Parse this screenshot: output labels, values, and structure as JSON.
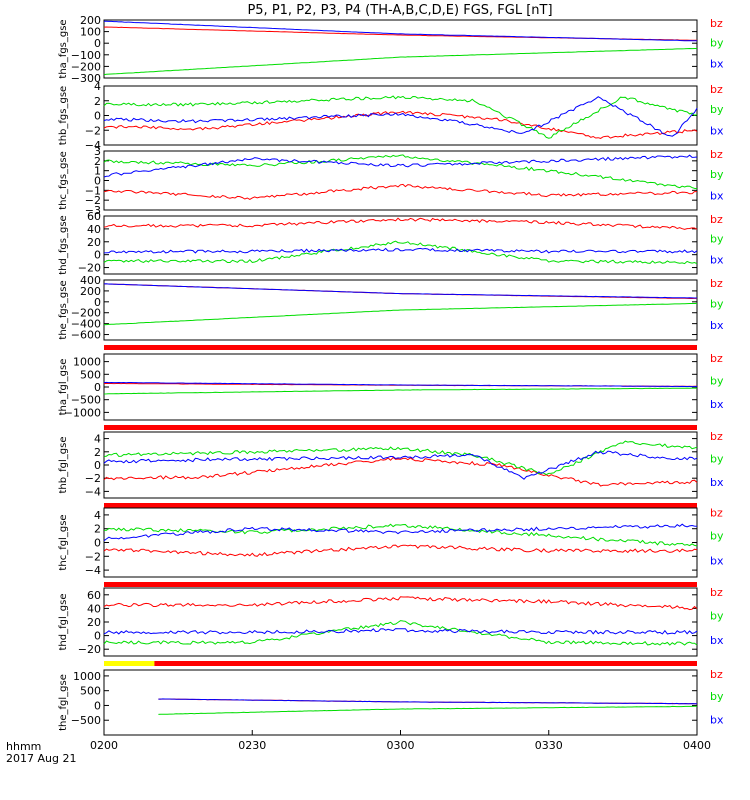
{
  "title": "P5, P1, P2, P3, P4 (TH-A,B,C,D,E) FGS, FGL [nT]",
  "time_axis": {
    "ticks": [
      "0200",
      "0230",
      "0300",
      "0330",
      "0400"
    ],
    "label_line1": "hhmm",
    "label_line2": "2017 Aug 21"
  },
  "colors": {
    "bx": "#0000ff",
    "by": "#00dd00",
    "bz": "#ff0000",
    "flag_red": "#ff0000",
    "flag_yellow": "#ffff00"
  },
  "chart_data": [
    {
      "type": "line",
      "ylabel": "tha_fgs_gse",
      "ylim": [
        -300,
        200
      ],
      "yticks": [
        "200",
        "100",
        "0",
        "−100",
        "−200",
        "−300"
      ],
      "legend": [
        "bz",
        "by",
        "bx"
      ],
      "x_range": [
        "0200",
        "0400"
      ],
      "series": [
        {
          "name": "bx",
          "x": [
            "0200",
            "0300",
            "0400"
          ],
          "values": [
            190,
            80,
            20
          ]
        },
        {
          "name": "by",
          "x": [
            "0200",
            "0300",
            "0400"
          ],
          "values": [
            -270,
            -120,
            -45
          ]
        },
        {
          "name": "bz",
          "x": [
            "0200",
            "0300",
            "0400"
          ],
          "values": [
            140,
            70,
            25
          ]
        }
      ]
    },
    {
      "type": "line",
      "ylabel": "thb_fgs_gse",
      "ylim": [
        -4,
        4
      ],
      "yticks": [
        "4",
        "2",
        "0",
        "−2",
        "−4"
      ],
      "legend": [
        "bz",
        "by",
        "bx"
      ],
      "x_range": [
        "0200",
        "0400"
      ],
      "series": [
        {
          "name": "bx",
          "x": [
            "0200",
            "0220",
            "0300",
            "0315",
            "0325",
            "0340",
            "0355",
            "0400"
          ],
          "values": [
            -0.5,
            -0.8,
            0.2,
            -1.2,
            -2.5,
            2.5,
            -3,
            1
          ]
        },
        {
          "name": "by",
          "x": [
            "0200",
            "0220",
            "0300",
            "0315",
            "0330",
            "0345",
            "0400"
          ],
          "values": [
            1.5,
            1.5,
            2.5,
            2,
            -3,
            2.5,
            0
          ]
        },
        {
          "name": "bz",
          "x": [
            "0200",
            "0220",
            "0300",
            "0320",
            "0340",
            "0400"
          ],
          "values": [
            -1.5,
            -1.8,
            0.5,
            -0.5,
            -3,
            -2
          ]
        }
      ]
    },
    {
      "type": "line",
      "ylabel": "thc_fgs_gse",
      "ylim": [
        -3,
        3
      ],
      "yticks": [
        "3",
        "2",
        "1",
        "0",
        "−1",
        "−2",
        "−3"
      ],
      "legend": [
        "bz",
        "by",
        "bx"
      ],
      "x_range": [
        "0200",
        "0400"
      ],
      "series": [
        {
          "name": "bx",
          "x": [
            "0200",
            "0230",
            "0300",
            "0330",
            "0400"
          ],
          "values": [
            0.5,
            2.2,
            1.5,
            2,
            2.5
          ]
        },
        {
          "name": "by",
          "x": [
            "0200",
            "0230",
            "0300",
            "0330",
            "0400"
          ],
          "values": [
            2,
            1.5,
            2.5,
            1,
            -0.8
          ]
        },
        {
          "name": "bz",
          "x": [
            "0200",
            "0230",
            "0300",
            "0330",
            "0400"
          ],
          "values": [
            -1,
            -1.8,
            -0.5,
            -1.5,
            -1.2
          ]
        }
      ]
    },
    {
      "type": "line",
      "ylabel": "thd_fgs_gse",
      "ylim": [
        -30,
        60
      ],
      "yticks": [
        "60",
        "40",
        "20",
        "0",
        "−20"
      ],
      "legend": [
        "bz",
        "by",
        "bx"
      ],
      "x_range": [
        "0200",
        "0400"
      ],
      "series": [
        {
          "name": "bx",
          "x": [
            "0200",
            "0230",
            "0300",
            "0330",
            "0400"
          ],
          "values": [
            5,
            5,
            8,
            5,
            5
          ]
        },
        {
          "name": "by",
          "x": [
            "0200",
            "0230",
            "0300",
            "0330",
            "0400"
          ],
          "values": [
            -10,
            -10,
            20,
            -10,
            -12
          ]
        },
        {
          "name": "bz",
          "x": [
            "0200",
            "0230",
            "0300",
            "0330",
            "0400"
          ],
          "values": [
            45,
            45,
            55,
            50,
            40
          ]
        }
      ]
    },
    {
      "type": "line",
      "ylabel": "the_fgs_gse",
      "ylim": [
        -700,
        400
      ],
      "yticks": [
        "400",
        "200",
        "0",
        "−200",
        "−400",
        "−600"
      ],
      "legend": [
        "bz",
        "by",
        "bx"
      ],
      "x_range": [
        "0200",
        "0400"
      ],
      "series": [
        {
          "name": "bx",
          "x": [
            "0200",
            "0300",
            "0400"
          ],
          "values": [
            330,
            150,
            70
          ]
        },
        {
          "name": "by",
          "x": [
            "0200",
            "0300",
            "0400"
          ],
          "values": [
            -420,
            -150,
            -30
          ]
        },
        {
          "name": "bz",
          "x": [
            "0200",
            "0300",
            "0400"
          ],
          "values": [
            330,
            150,
            60
          ]
        }
      ]
    },
    {
      "type": "line",
      "ylabel": "tha_fgl_gse",
      "ylim": [
        -1300,
        1300
      ],
      "yticks": [
        "1000",
        "500",
        "0",
        "−500",
        "−1000"
      ],
      "legend": [
        "bz",
        "by",
        "bx"
      ],
      "x_range": [
        "0200",
        "0400"
      ],
      "series": [
        {
          "name": "bx",
          "x": [
            "0200",
            "0300",
            "0400"
          ],
          "values": [
            180,
            80,
            20
          ]
        },
        {
          "name": "by",
          "x": [
            "0200",
            "0300",
            "0400"
          ],
          "values": [
            -270,
            -120,
            -45
          ]
        },
        {
          "name": "bz",
          "x": [
            "0200",
            "0300",
            "0400"
          ],
          "values": [
            140,
            70,
            25
          ]
        }
      ]
    },
    {
      "type": "line",
      "ylabel": "thb_fgl_gse",
      "ylim": [
        -5,
        5
      ],
      "yticks": [
        "4",
        "2",
        "0",
        "−2",
        "−4"
      ],
      "legend": [
        "bz",
        "by",
        "bx"
      ],
      "x_range": [
        "0200",
        "0400"
      ],
      "series": [
        {
          "name": "bx",
          "x": [
            "0200",
            "0220",
            "0300",
            "0315",
            "0325",
            "0340",
            "0355",
            "0400"
          ],
          "values": [
            0.5,
            0.8,
            1.2,
            1.5,
            -2,
            2,
            1,
            1
          ]
        },
        {
          "name": "by",
          "x": [
            "0200",
            "0220",
            "0300",
            "0315",
            "0330",
            "0345",
            "0400"
          ],
          "values": [
            1.5,
            1.8,
            2.5,
            1.5,
            -1.5,
            3.5,
            2.5
          ]
        },
        {
          "name": "bz",
          "x": [
            "0200",
            "0220",
            "0300",
            "0320",
            "0340",
            "0400"
          ],
          "values": [
            -2,
            -1.8,
            1,
            0,
            -3,
            -2.5
          ]
        }
      ]
    },
    {
      "type": "line",
      "ylabel": "thc_fgl_gse",
      "ylim": [
        -5,
        5
      ],
      "yticks": [
        "4",
        "2",
        "0",
        "−2",
        "−4"
      ],
      "legend": [
        "bz",
        "by",
        "bx"
      ],
      "x_range": [
        "0200",
        "0400"
      ],
      "series": [
        {
          "name": "bx",
          "x": [
            "0200",
            "0230",
            "0300",
            "0330",
            "0400"
          ],
          "values": [
            0.5,
            2,
            1.5,
            2,
            2.5
          ]
        },
        {
          "name": "by",
          "x": [
            "0200",
            "0230",
            "0300",
            "0330",
            "0400"
          ],
          "values": [
            2,
            1.5,
            2.5,
            1,
            -0.5
          ]
        },
        {
          "name": "bz",
          "x": [
            "0200",
            "0230",
            "0300",
            "0330",
            "0400"
          ],
          "values": [
            -1,
            -1.8,
            -0.5,
            -1.2,
            -1.2
          ]
        }
      ]
    },
    {
      "type": "line",
      "ylabel": "thd_fgl_gse",
      "ylim": [
        -30,
        70
      ],
      "yticks": [
        "60",
        "40",
        "20",
        "0",
        "−20"
      ],
      "legend": [
        "bz",
        "by",
        "bx"
      ],
      "x_range": [
        "0200",
        "0400"
      ],
      "series": [
        {
          "name": "bx",
          "x": [
            "0200",
            "0230",
            "0300",
            "0330",
            "0400"
          ],
          "values": [
            5,
            5,
            8,
            5,
            5
          ]
        },
        {
          "name": "by",
          "x": [
            "0200",
            "0230",
            "0300",
            "0330",
            "0400"
          ],
          "values": [
            -10,
            -10,
            20,
            -10,
            -12
          ]
        },
        {
          "name": "bz",
          "x": [
            "0200",
            "0230",
            "0300",
            "0330",
            "0400"
          ],
          "values": [
            45,
            45,
            55,
            50,
            40
          ]
        }
      ]
    },
    {
      "type": "line",
      "ylabel": "the_fgl_gse",
      "ylim": [
        -1000,
        1200
      ],
      "yticks": [
        "1000",
        "500",
        "0",
        "−500"
      ],
      "legend": [
        "bz",
        "by",
        "bx"
      ],
      "x_range": [
        "0211",
        "0400"
      ],
      "series": [
        {
          "name": "bx",
          "x": [
            "0211",
            "0300",
            "0400"
          ],
          "values": [
            220,
            120,
            60
          ]
        },
        {
          "name": "by",
          "x": [
            "0211",
            "0300",
            "0400"
          ],
          "values": [
            -300,
            -120,
            -30
          ]
        },
        {
          "name": "bz",
          "x": [
            "0211",
            "0300",
            "0400"
          ],
          "values": [
            220,
            120,
            60
          ]
        }
      ]
    }
  ]
}
